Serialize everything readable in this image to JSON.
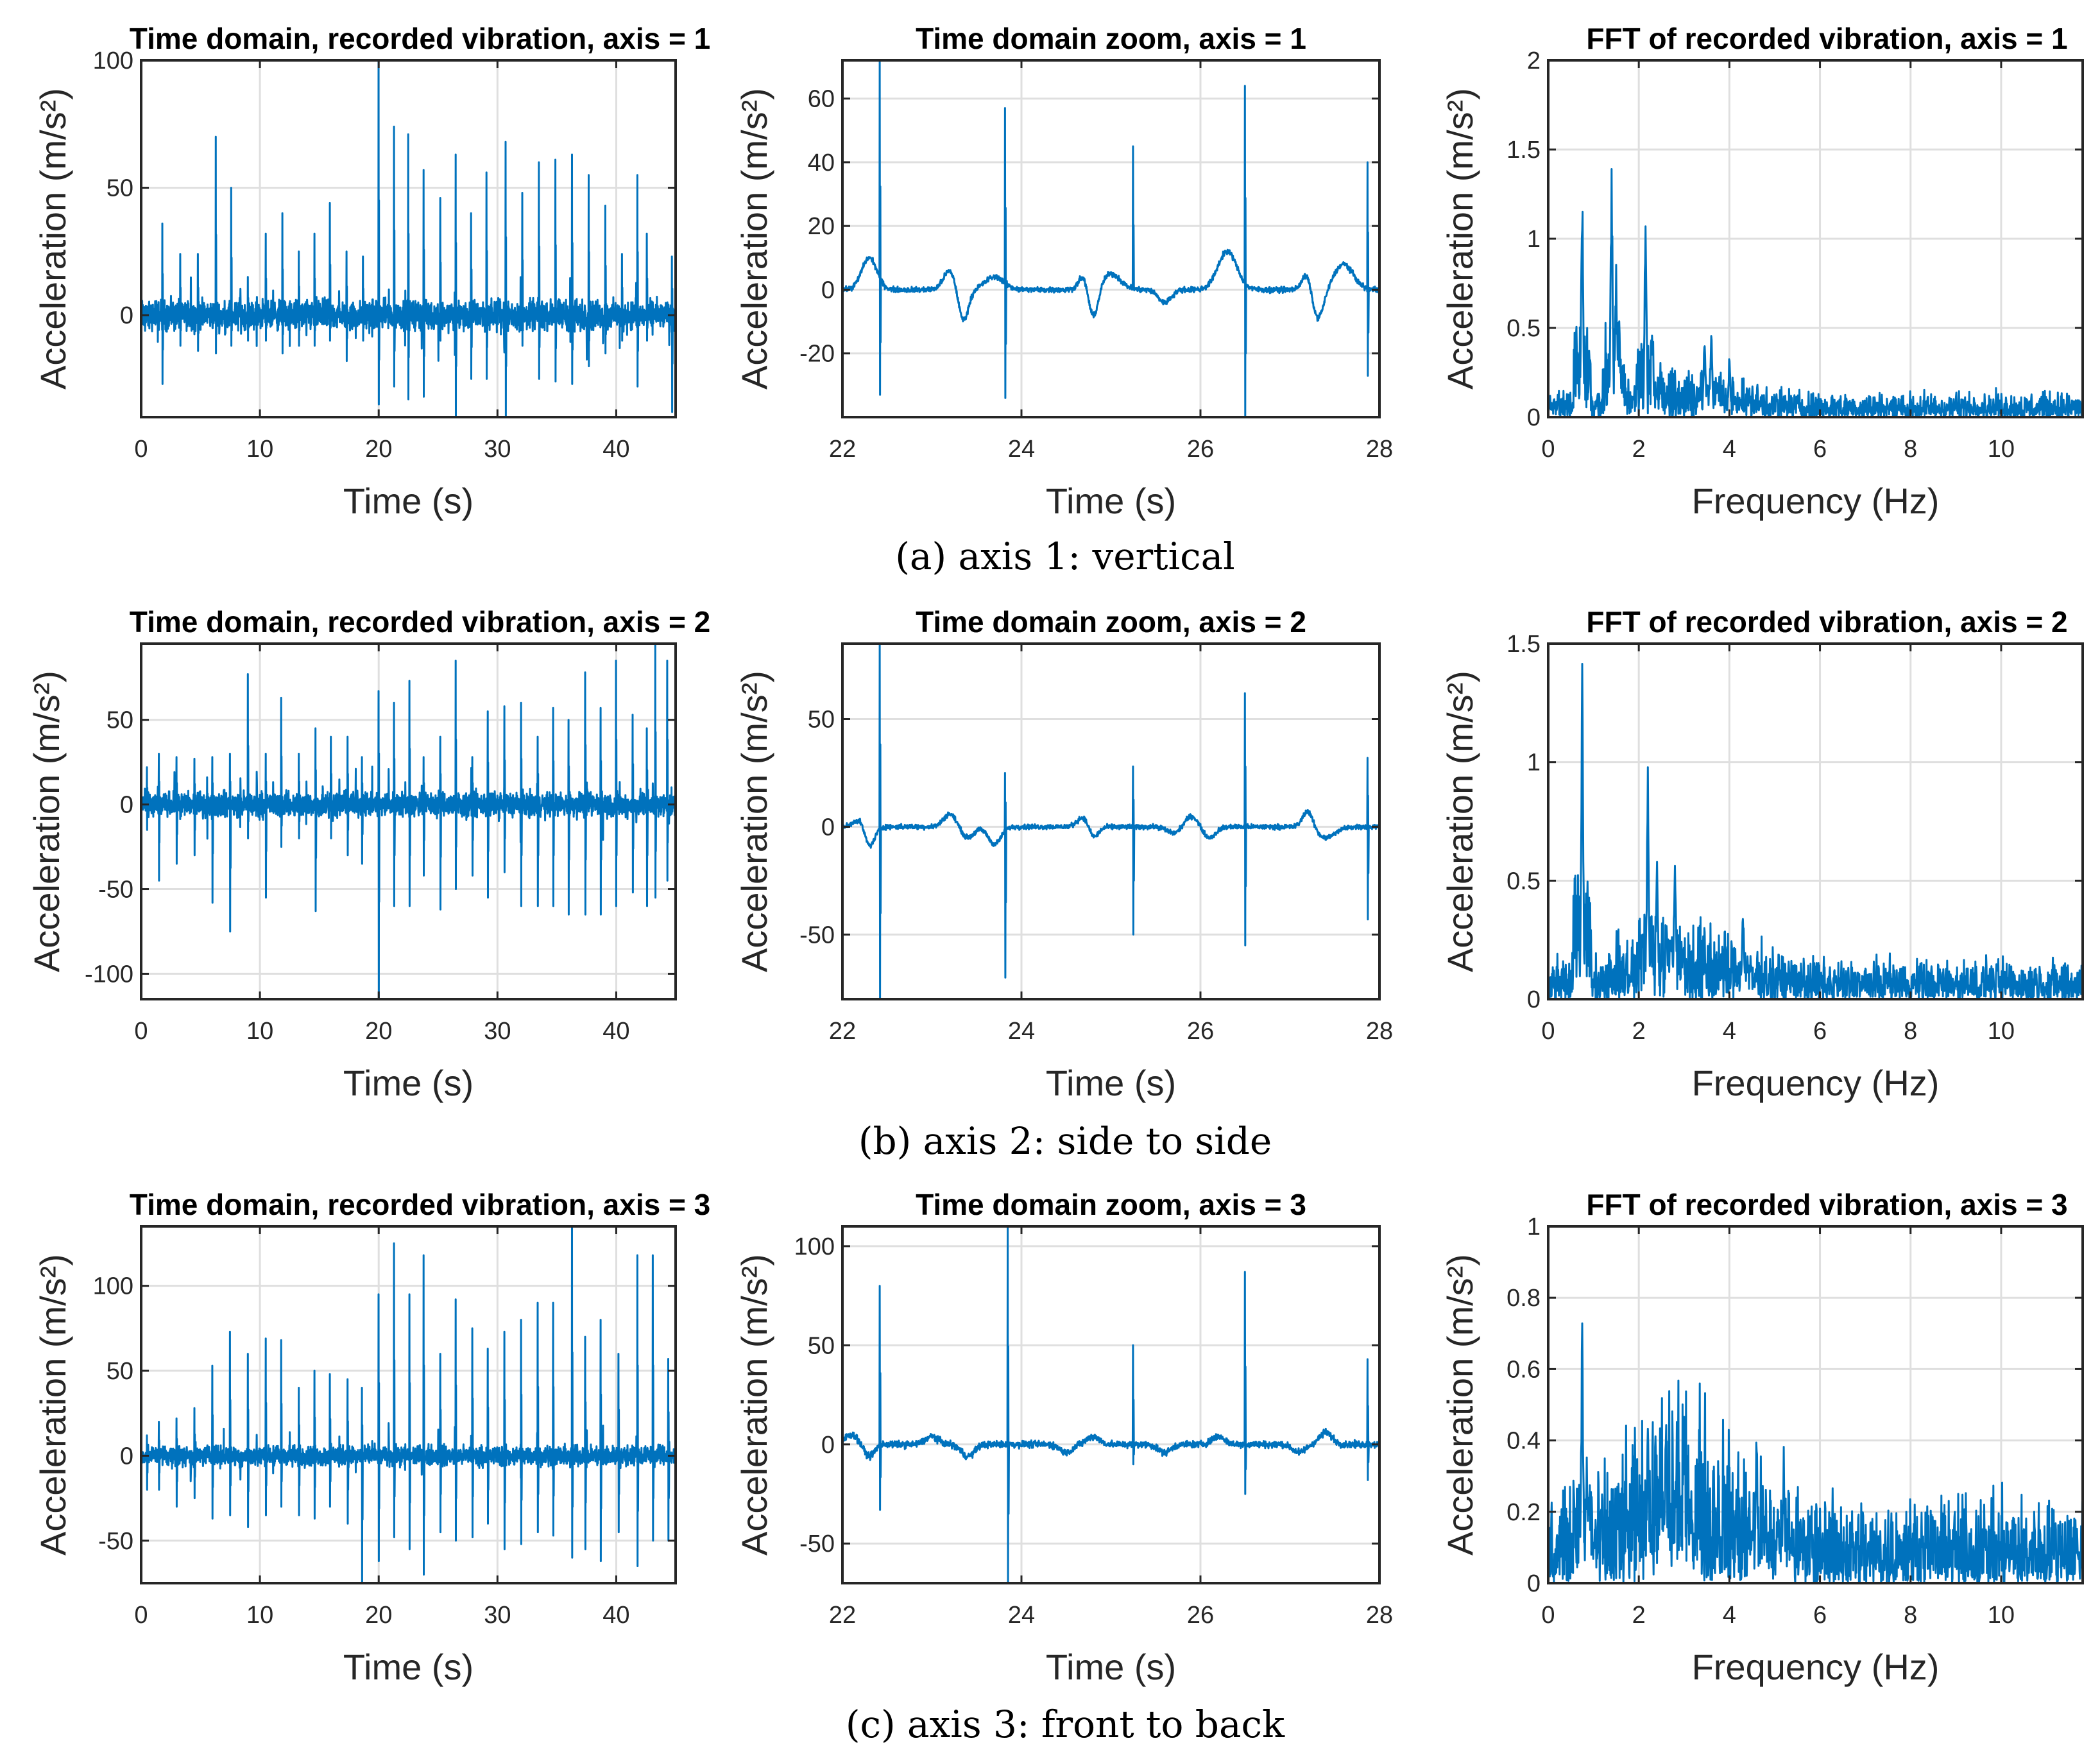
{
  "captions": [
    "(a) axis 1: vertical",
    "(b) axis 2: side to side",
    "(c) axis 3: front to back"
  ],
  "style": {
    "line_color": "#0072BD",
    "grid_color": "#dfdfdf",
    "axis_color": "#262626"
  },
  "chart_data": [
    {
      "type": "line",
      "kind": "time",
      "title": "Time domain, recorded vibration, axis = 1",
      "xlabel": "Time (s)",
      "ylabel": "Acceleration (m/s²)",
      "xlim": [
        0,
        45
      ],
      "ylim": [
        -40,
        100
      ],
      "xticks": [
        0,
        10,
        20,
        30,
        40
      ],
      "yticks": [
        0,
        50,
        100
      ],
      "grid": true,
      "noise": 4,
      "spikes": [
        [
          1.8,
          36,
          -27
        ],
        [
          3.3,
          24,
          -12
        ],
        [
          4.8,
          24,
          -14
        ],
        [
          6.3,
          70,
          -15
        ],
        [
          7.6,
          50,
          -12
        ],
        [
          9,
          15,
          -10
        ],
        [
          10.5,
          32,
          -10
        ],
        [
          11.9,
          40,
          -15
        ],
        [
          13.3,
          25,
          -12
        ],
        [
          14.6,
          32,
          -12
        ],
        [
          15.9,
          44,
          -10
        ],
        [
          17.3,
          25,
          -18
        ],
        [
          18.7,
          23,
          -10
        ],
        [
          20,
          100,
          -35
        ],
        [
          21.3,
          74,
          -28
        ],
        [
          22.5,
          71,
          -33
        ],
        [
          23.8,
          57,
          -32
        ],
        [
          25.2,
          46,
          -10
        ],
        [
          26.5,
          63,
          -40
        ],
        [
          27.8,
          40,
          -25
        ],
        [
          29.1,
          56,
          -25
        ],
        [
          30.7,
          68,
          -40
        ],
        [
          32.1,
          48,
          -12
        ],
        [
          33.5,
          60,
          -25
        ],
        [
          34.9,
          61,
          -26
        ],
        [
          36.3,
          63,
          -27
        ],
        [
          37.7,
          55,
          -20
        ],
        [
          39.1,
          43,
          -15
        ],
        [
          40.5,
          24,
          -10
        ],
        [
          41.8,
          55,
          -28
        ],
        [
          42.6,
          32,
          -10
        ],
        [
          44.7,
          23,
          -38
        ]
      ]
    },
    {
      "type": "line",
      "kind": "zoom",
      "title": "Time domain zoom, axis = 1",
      "xlabel": "Time (s)",
      "ylabel": "Acceleration (m/s²)",
      "xlim": [
        22,
        28
      ],
      "ylim": [
        -40,
        72
      ],
      "xticks": [
        22,
        24,
        26,
        28
      ],
      "yticks": [
        -20,
        0,
        20,
        40,
        60
      ],
      "grid": true,
      "noise": 0.6,
      "spikes": [
        [
          22.42,
          72,
          -33
        ],
        [
          23.82,
          57,
          -34
        ],
        [
          25.25,
          45,
          2
        ],
        [
          26.5,
          64,
          -40
        ],
        [
          27.87,
          40,
          -27
        ]
      ],
      "bumps": [
        [
          22.3,
          10,
          0.12
        ],
        [
          23.2,
          6,
          0.1
        ],
        [
          23.35,
          -10,
          0.08
        ],
        [
          23.7,
          4,
          0.15
        ],
        [
          24.7,
          5,
          0.08
        ],
        [
          24.8,
          -10,
          0.08
        ],
        [
          25.0,
          5,
          0.15
        ],
        [
          25.6,
          -4,
          0.1
        ],
        [
          26.3,
          12,
          0.15
        ],
        [
          27.2,
          7,
          0.08
        ],
        [
          27.3,
          -10,
          0.1
        ],
        [
          27.6,
          8,
          0.15
        ]
      ]
    },
    {
      "type": "line",
      "kind": "fft",
      "title": "FFT of recorded vibration, axis = 1",
      "xlabel": "Frequency (Hz)",
      "ylabel": "Acceleration (m/s²)",
      "xlim": [
        0,
        11.8
      ],
      "ylim": [
        0,
        2
      ],
      "xticks": [
        0,
        2,
        4,
        6,
        8,
        10
      ],
      "yticks": [
        0,
        0.5,
        1,
        1.5,
        2
      ],
      "grid": true,
      "noise": 0.1,
      "peaks": [
        [
          0.75,
          1.45
        ],
        [
          1.4,
          1.56
        ],
        [
          1.5,
          1.0
        ],
        [
          2.15,
          1.25
        ],
        [
          2.3,
          0.55
        ],
        [
          3.45,
          0.5
        ],
        [
          3.6,
          0.57
        ],
        [
          4.0,
          0.38
        ]
      ]
    },
    {
      "type": "line",
      "kind": "time",
      "title": "Time domain, recorded vibration, axis = 2",
      "xlabel": "Time (s)",
      "ylabel": "Acceleration (m/s²)",
      "xlim": [
        0,
        45
      ],
      "ylim": [
        -115,
        95
      ],
      "xticks": [
        0,
        10,
        20,
        30,
        40
      ],
      "yticks": [
        -100,
        -50,
        0,
        50
      ],
      "grid": true,
      "noise": 5,
      "spikes": [
        [
          0.5,
          22,
          -15
        ],
        [
          1.5,
          30,
          -45
        ],
        [
          3,
          28,
          -35
        ],
        [
          4.5,
          27,
          -30
        ],
        [
          6,
          28,
          -58
        ],
        [
          7.5,
          30,
          -75
        ],
        [
          9,
          77,
          -20
        ],
        [
          10.5,
          30,
          -55
        ],
        [
          11.8,
          63,
          -25
        ],
        [
          13.3,
          30,
          -20
        ],
        [
          14.7,
          45,
          -63
        ],
        [
          16,
          40,
          -20
        ],
        [
          17.4,
          40,
          -30
        ],
        [
          18.6,
          28,
          -35
        ],
        [
          20,
          67,
          -115
        ],
        [
          21.3,
          60,
          -60
        ],
        [
          22.6,
          73,
          -60
        ],
        [
          23.8,
          28,
          -42
        ],
        [
          25.2,
          40,
          -62
        ],
        [
          26.5,
          85,
          -50
        ],
        [
          27.9,
          28,
          -42
        ],
        [
          29.2,
          55,
          -55
        ],
        [
          30.6,
          58,
          -40
        ],
        [
          32,
          60,
          -60
        ],
        [
          33.4,
          40,
          -60
        ],
        [
          34.7,
          57,
          -60
        ],
        [
          36,
          50,
          -65
        ],
        [
          37.4,
          78,
          -65
        ],
        [
          38.7,
          57,
          -65
        ],
        [
          40,
          85,
          -60
        ],
        [
          41.4,
          53,
          -52
        ],
        [
          42.6,
          45,
          -60
        ],
        [
          43.3,
          95,
          -55
        ],
        [
          44.3,
          85,
          -45
        ]
      ]
    },
    {
      "type": "line",
      "kind": "zoom",
      "title": "Time domain zoom, axis = 2",
      "xlabel": "Time (s)",
      "ylabel": "Acceleration (m/s²)",
      "xlim": [
        22,
        28
      ],
      "ylim": [
        -80,
        85
      ],
      "xticks": [
        22,
        24,
        26,
        28
      ],
      "yticks": [
        -50,
        0,
        50
      ],
      "grid": true,
      "noise": 0.8,
      "spikes": [
        [
          22.42,
          85,
          -80
        ],
        [
          23.82,
          25,
          -70
        ],
        [
          25.25,
          28,
          -50
        ],
        [
          26.5,
          62,
          -55
        ],
        [
          27.87,
          32,
          -43
        ]
      ],
      "bumps": [
        [
          22.2,
          4,
          0.1
        ],
        [
          22.3,
          -10,
          0.08
        ],
        [
          23.2,
          6,
          0.1
        ],
        [
          23.4,
          -5,
          0.1
        ],
        [
          23.7,
          -8,
          0.1
        ],
        [
          24.7,
          5,
          0.1
        ],
        [
          24.8,
          -6,
          0.08
        ],
        [
          25.7,
          -3,
          0.1
        ],
        [
          25.9,
          5,
          0.1
        ],
        [
          26.1,
          -5,
          0.1
        ],
        [
          27.2,
          8,
          0.08
        ],
        [
          27.4,
          -5,
          0.15
        ]
      ]
    },
    {
      "type": "line",
      "kind": "fft",
      "title": "FFT of recorded vibration, axis = 2",
      "xlabel": "Frequency (Hz)",
      "ylabel": "Acceleration (m/s²)",
      "xlim": [
        0,
        11.8
      ],
      "ylim": [
        0,
        1.5
      ],
      "xticks": [
        0,
        2,
        4,
        6,
        8,
        10
      ],
      "yticks": [
        0,
        0.5,
        1,
        1.5
      ],
      "grid": true,
      "noise": 0.12,
      "peaks": [
        [
          0.75,
          1.5
        ],
        [
          2.2,
          1.05
        ],
        [
          2.4,
          0.68
        ],
        [
          2.8,
          0.75
        ],
        [
          4.3,
          0.45
        ]
      ]
    },
    {
      "type": "line",
      "kind": "time",
      "title": "Time domain, recorded vibration, axis = 3",
      "xlabel": "Time (s)",
      "ylabel": "Acceleration (m/s²)",
      "xlim": [
        0,
        45
      ],
      "ylim": [
        -75,
        135
      ],
      "xticks": [
        0,
        10,
        20,
        30,
        40
      ],
      "yticks": [
        -50,
        0,
        50,
        100
      ],
      "grid": true,
      "noise": 4,
      "spikes": [
        [
          0.5,
          12,
          -20
        ],
        [
          1.5,
          20,
          -20
        ],
        [
          3,
          22,
          -30
        ],
        [
          4.5,
          28,
          -25
        ],
        [
          6,
          53,
          -37
        ],
        [
          7.5,
          73,
          -35
        ],
        [
          9,
          60,
          -42
        ],
        [
          10.5,
          69,
          -35
        ],
        [
          11.8,
          68,
          -30
        ],
        [
          13.3,
          40,
          -35
        ],
        [
          14.6,
          50,
          -37
        ],
        [
          15.9,
          48,
          -30
        ],
        [
          17.4,
          45,
          -40
        ],
        [
          18.6,
          40,
          -75
        ],
        [
          20,
          95,
          -62
        ],
        [
          21.3,
          125,
          -48
        ],
        [
          22.6,
          95,
          -55
        ],
        [
          23.8,
          118,
          -70
        ],
        [
          25.2,
          60,
          -45
        ],
        [
          26.5,
          92,
          -50
        ],
        [
          27.9,
          75,
          -48
        ],
        [
          29.2,
          63,
          -40
        ],
        [
          30.6,
          73,
          -55
        ],
        [
          32,
          80,
          -52
        ],
        [
          33.4,
          90,
          -45
        ],
        [
          34.7,
          90,
          -47
        ],
        [
          36.3,
          135,
          -60
        ],
        [
          37.4,
          70,
          -55
        ],
        [
          38.7,
          80,
          -62
        ],
        [
          40.2,
          60,
          -45
        ],
        [
          41.8,
          118,
          -65
        ],
        [
          43.1,
          118,
          -50
        ],
        [
          44.4,
          57,
          -50
        ]
      ]
    },
    {
      "type": "line",
      "kind": "zoom",
      "title": "Time domain zoom, axis = 3",
      "xlabel": "Time (s)",
      "ylabel": "Acceleration (m/s²)",
      "xlim": [
        22,
        28
      ],
      "ylim": [
        -70,
        110
      ],
      "xticks": [
        22,
        24,
        26,
        28
      ],
      "yticks": [
        -50,
        0,
        50,
        100
      ],
      "grid": true,
      "noise": 1.2,
      "spikes": [
        [
          22.42,
          80,
          -33
        ],
        [
          23.85,
          110,
          -70
        ],
        [
          25.25,
          50,
          -10
        ],
        [
          26.5,
          87,
          -25
        ],
        [
          27.87,
          43,
          -18
        ]
      ],
      "bumps": [
        [
          22.1,
          5,
          0.1
        ],
        [
          22.3,
          -6,
          0.08
        ],
        [
          23.0,
          4,
          0.1
        ],
        [
          23.4,
          -6,
          0.1
        ],
        [
          24.5,
          -4,
          0.1
        ],
        [
          24.8,
          4,
          0.1
        ],
        [
          25.6,
          -4,
          0.1
        ],
        [
          26.2,
          4,
          0.1
        ],
        [
          27.1,
          -4,
          0.1
        ],
        [
          27.4,
          6,
          0.1
        ]
      ]
    },
    {
      "type": "line",
      "kind": "fft",
      "title": "FFT of recorded vibration, axis = 3",
      "xlabel": "Frequency (Hz)",
      "ylabel": "Acceleration (m/s²)",
      "xlim": [
        0,
        11.8
      ],
      "ylim": [
        0,
        1
      ],
      "xticks": [
        0,
        2,
        4,
        6,
        8,
        10
      ],
      "yticks": [
        0,
        0.2,
        0.4,
        0.6,
        0.8,
        1
      ],
      "grid": true,
      "noise": 0.17,
      "peaks": [
        [
          0.75,
          0.83
        ],
        [
          0.85,
          0.4
        ],
        [
          2.2,
          0.5
        ],
        [
          2.6,
          0.5
        ],
        [
          3.0,
          0.5
        ],
        [
          4.6,
          0.48
        ],
        [
          5.2,
          0.4
        ]
      ]
    }
  ]
}
